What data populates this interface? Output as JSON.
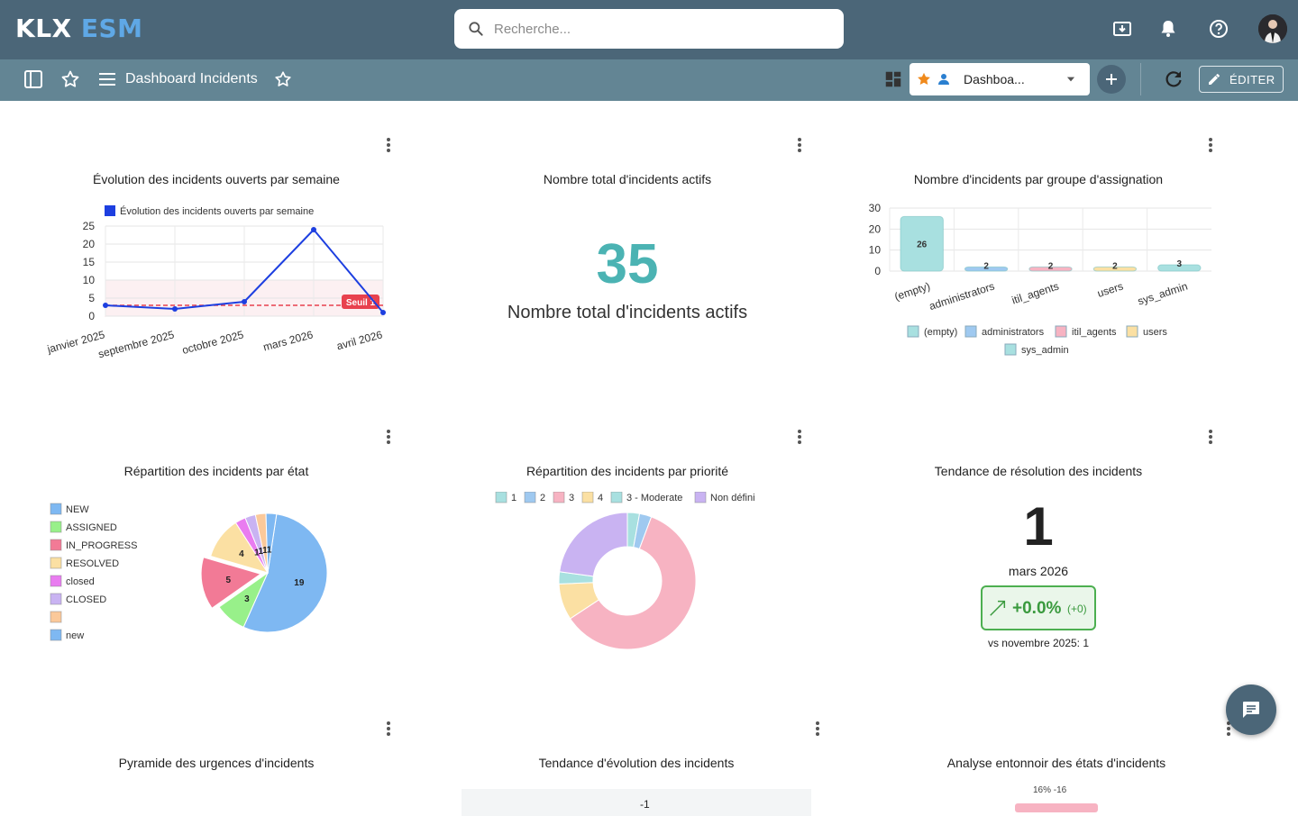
{
  "app": {
    "logo_part1": "KLX",
    "logo_part2": "ESM"
  },
  "search": {
    "placeholder": "Recherche..."
  },
  "toolbar": {
    "page_title": "Dashboard Incidents",
    "dashboard_select": "Dashboa...",
    "edit_label": "ÉDITER"
  },
  "cards": {
    "weekly": {
      "title": "Évolution des incidents ouverts par semaine",
      "chart_data": {
        "type": "line",
        "title": "Évolution des incidents ouverts par semaine",
        "legend": "Évolution des incidents ouverts par semaine",
        "categories": [
          "janvier 2025",
          "septembre 2025",
          "octobre 2025",
          "mars 2026",
          "avril 2026"
        ],
        "values": [
          3,
          2,
          4,
          24,
          1
        ],
        "ylim": [
          0,
          25
        ],
        "yticks": [
          "0",
          "5",
          "10",
          "15",
          "20",
          "25"
        ],
        "threshold": {
          "label": "Seuil 1",
          "value": 3
        },
        "band": [
          0,
          10
        ],
        "color": "#1d3fe0"
      }
    },
    "total_active": {
      "title": "Nombre total d'incidents actifs",
      "value": "35",
      "caption": "Nombre total d'incidents actifs"
    },
    "by_group": {
      "title": "Nombre d'incidents par groupe d'assignation",
      "chart_data": {
        "type": "bar",
        "categories": [
          "(empty)",
          "administrators",
          "itil_agents",
          "users",
          "sys_admin"
        ],
        "values": [
          26,
          2,
          2,
          2,
          3
        ],
        "ylim": [
          0,
          30
        ],
        "yticks": [
          "0",
          "10",
          "20",
          "30"
        ],
        "colors": [
          "#a8e0e0",
          "#9fc9f0",
          "#f7b3c2",
          "#fbe0a3",
          "#a8e0e0"
        ],
        "legend": [
          "(empty)",
          "administrators",
          "itil_agents",
          "users",
          "sys_admin"
        ]
      }
    },
    "by_state": {
      "title": "Répartition des incidents par état",
      "chart_data": {
        "type": "pie",
        "labels": [
          "NEW",
          "ASSIGNED",
          "IN_PROGRESS",
          "RESOLVED",
          "closed",
          "CLOSED",
          "",
          "new"
        ],
        "values": [
          19,
          3,
          5,
          4,
          1,
          1,
          1,
          1
        ],
        "colors": [
          "#7eb8f2",
          "#98f08a",
          "#f27a96",
          "#fbe0a3",
          "#e97cf0",
          "#c9b3f2",
          "#fbc99a",
          "#7eb8f2"
        ],
        "data_labels": [
          "19",
          "3",
          "5",
          "4",
          "1",
          "1",
          "1",
          "1"
        ]
      }
    },
    "by_priority": {
      "title": "Répartition des incidents par priorité",
      "chart_data": {
        "type": "pie",
        "labels": [
          "1",
          "2",
          "3",
          "4",
          "3 - Moderate",
          "Non défini"
        ],
        "values": [
          1,
          1,
          21,
          3,
          1,
          8
        ],
        "colors": [
          "#a8e0e0",
          "#9fc9f0",
          "#f7b3c2",
          "#fbe0a3",
          "#a8e0e0",
          "#c9b3f2"
        ]
      }
    },
    "trend": {
      "title": "Tendance de résolution des incidents",
      "value": "1",
      "period": "mars 2026",
      "delta": "+0.0%",
      "delta_abs": "(+0)",
      "compare": "vs novembre 2025: 1"
    },
    "pyramid": {
      "title": "Pyramide des urgences d'incidents"
    },
    "evolution": {
      "title": "Tendance d'évolution des incidents",
      "peek": "-1"
    },
    "funnel": {
      "title": "Analyse entonnoir des états d'incidents",
      "peek": "16%  -16"
    }
  }
}
